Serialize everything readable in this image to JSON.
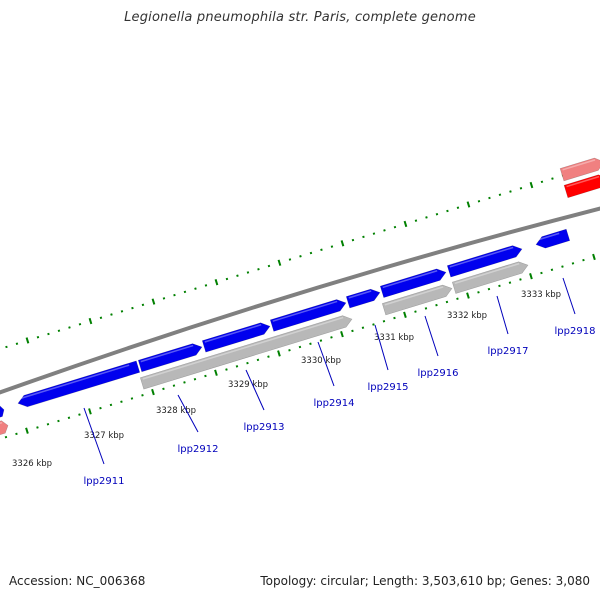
{
  "title": "Legionella pneumophila str. Paris, complete genome",
  "footer": {
    "accession": "Accession: NC_006368",
    "summary": "Topology: circular; Length: 3,503,610 bp; Genes: 3,080"
  },
  "colors": {
    "forward_gene": "#0000ee",
    "reverse_gene": "#b8b8b8",
    "red_feature": "#ff0000",
    "pink_feature": "#f08080",
    "backbone": "#808080",
    "tick": "#008000",
    "label": "#0000bb"
  },
  "ticks": [
    {
      "label": "3326 kbp"
    },
    {
      "label": "3327 kbp"
    },
    {
      "label": "3328 kbp"
    },
    {
      "label": "3329 kbp"
    },
    {
      "label": "3330 kbp"
    },
    {
      "label": "3331 kbp"
    },
    {
      "label": "3332 kbp"
    },
    {
      "label": "3333 kbp"
    }
  ],
  "genes": [
    {
      "label": "lpp2911"
    },
    {
      "label": "lpp2912"
    },
    {
      "label": "lpp2913"
    },
    {
      "label": "lpp2914"
    },
    {
      "label": "lpp2915"
    },
    {
      "label": "lpp2916"
    },
    {
      "label": "lpp2917"
    },
    {
      "label": "lpp2918"
    }
  ]
}
